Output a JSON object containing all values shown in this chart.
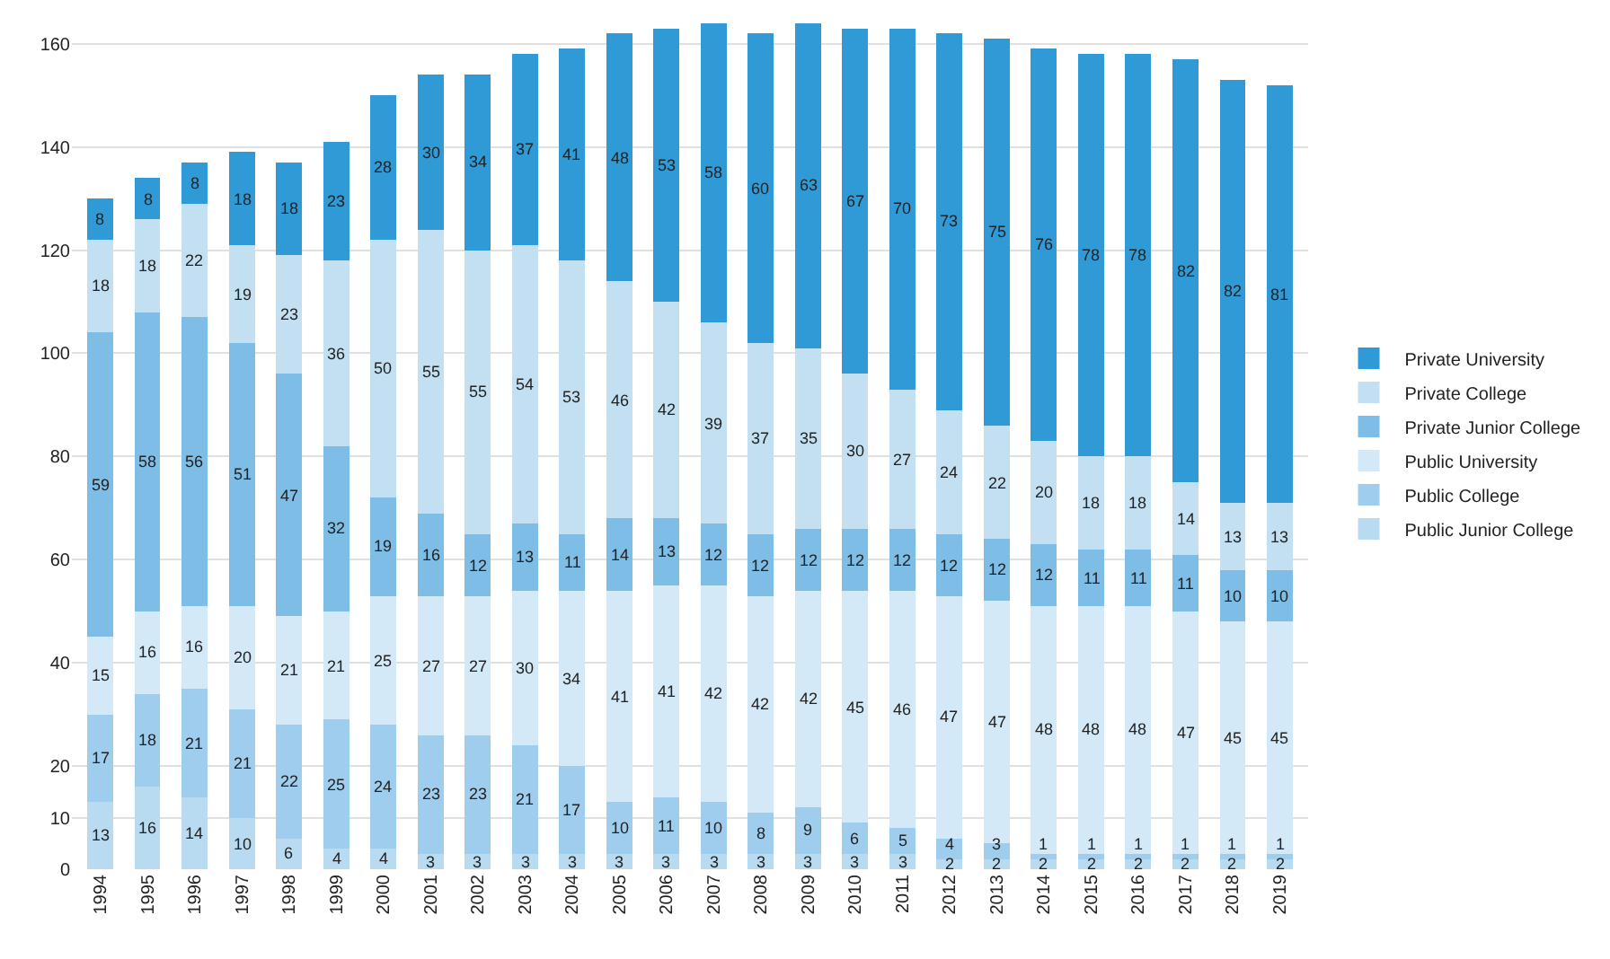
{
  "chart_data": {
    "type": "bar",
    "stacked": true,
    "data_labels": true,
    "grid": "y",
    "legend": "right",
    "categories": [
      "1994",
      "1995",
      "1996",
      "1997",
      "1998",
      "1999",
      "2000",
      "2001",
      "2002",
      "2003",
      "2004",
      "2005",
      "2006",
      "2007",
      "2008",
      "2009",
      "2010",
      "2011",
      "2012",
      "2013",
      "2014",
      "2015",
      "2016",
      "2017",
      "2018",
      "2019"
    ],
    "ylim": [
      0,
      165
    ],
    "yticks": [
      0,
      10,
      20,
      40,
      60,
      80,
      100,
      120,
      140,
      160
    ],
    "series": [
      {
        "name": "Public Junior College",
        "color": "#b9dbf1",
        "values": [
          13,
          16,
          14,
          10,
          6,
          4,
          4,
          3,
          3,
          3,
          3,
          3,
          3,
          3,
          3,
          3,
          3,
          3,
          2,
          2,
          2,
          2,
          2,
          2,
          2,
          2
        ]
      },
      {
        "name": "Public College",
        "color": "#9fcdee",
        "values": [
          17,
          18,
          21,
          21,
          22,
          25,
          24,
          23,
          23,
          21,
          17,
          10,
          11,
          10,
          8,
          9,
          6,
          5,
          4,
          3,
          1,
          1,
          1,
          1,
          1,
          1
        ]
      },
      {
        "name": "Public University",
        "color": "#d4e9f7",
        "values": [
          15,
          16,
          16,
          20,
          21,
          21,
          25,
          27,
          27,
          30,
          34,
          41,
          41,
          42,
          42,
          42,
          45,
          46,
          47,
          47,
          48,
          48,
          48,
          47,
          45,
          45
        ]
      },
      {
        "name": "Private Junior College",
        "color": "#7dbde6",
        "values": [
          59,
          58,
          56,
          51,
          47,
          32,
          19,
          16,
          12,
          13,
          11,
          14,
          13,
          12,
          12,
          12,
          12,
          12,
          12,
          12,
          12,
          11,
          11,
          11,
          10,
          10
        ]
      },
      {
        "name": "Private College",
        "color": "#c3e0f3",
        "values": [
          18,
          18,
          22,
          19,
          23,
          36,
          50,
          55,
          55,
          54,
          53,
          46,
          42,
          39,
          37,
          35,
          30,
          27,
          24,
          22,
          20,
          18,
          18,
          14,
          13,
          13
        ]
      },
      {
        "name": "Private University",
        "color": "#2f9ad6",
        "values": [
          8,
          8,
          8,
          18,
          18,
          23,
          28,
          30,
          34,
          37,
          41,
          48,
          53,
          58,
          60,
          63,
          67,
          70,
          73,
          75,
          76,
          78,
          78,
          82,
          82,
          81
        ]
      }
    ]
  }
}
